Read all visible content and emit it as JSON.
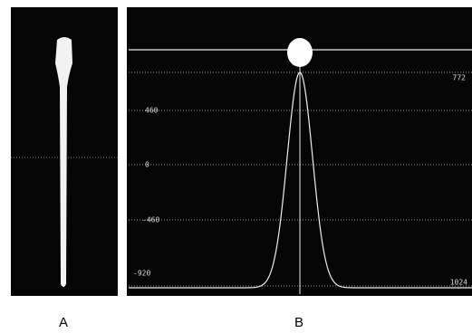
{
  "panel_a": {
    "label": "A"
  },
  "panel_b": {
    "label": "B",
    "left_labels": [
      "460",
      "0",
      "-460",
      "-920"
    ],
    "right_labels": [
      "772",
      "1024"
    ]
  }
}
